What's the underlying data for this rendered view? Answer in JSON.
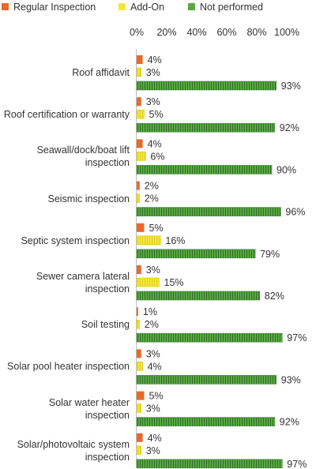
{
  "chart_data": {
    "type": "bar",
    "orientation": "horizontal",
    "categories": [
      "Roof affidavit",
      "Roof certification or warranty",
      "Seawall/dock/boat lift inspection",
      "Seismic inspection",
      "Septic system inspection",
      "Sewer camera lateral inspection",
      "Soil testing",
      "Solar pool heater inspection",
      "Solar water heater inspection",
      "Solar/photovoltaic system inspection"
    ],
    "series": [
      {
        "name": "Regular Inspection",
        "color": "#e8692a",
        "pattern": "solid",
        "values": [
          4,
          3,
          4,
          2,
          5,
          3,
          1,
          3,
          5,
          4
        ]
      },
      {
        "name": "Add-On",
        "color": "#f5e63a",
        "pattern": "vertical-stripes",
        "values": [
          3,
          5,
          6,
          2,
          16,
          15,
          2,
          4,
          3,
          3
        ]
      },
      {
        "name": "Not performed",
        "color": "#5ba845",
        "pattern": "vertical-stripes",
        "values": [
          93,
          92,
          90,
          96,
          79,
          82,
          97,
          93,
          92,
          97
        ]
      }
    ],
    "xlim": [
      0,
      100
    ],
    "x_ticks": [
      "0%",
      "20%",
      "40%",
      "60%",
      "80%",
      "100%"
    ],
    "value_suffix": "%",
    "legend_position": "top",
    "grid": false
  }
}
